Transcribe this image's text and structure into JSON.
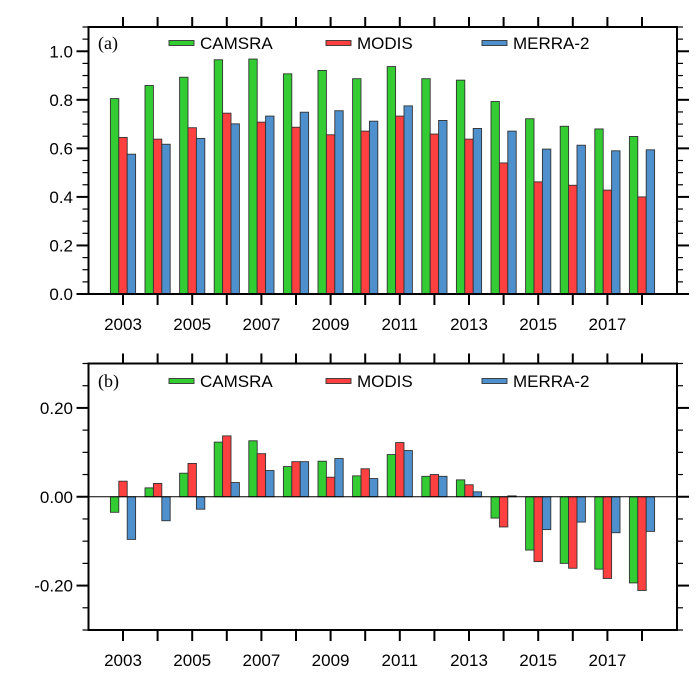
{
  "chart_data": [
    {
      "type": "bar",
      "panel_label": "(a)",
      "title": "",
      "xlabel": "",
      "ylabel": "",
      "x": [
        2003,
        2004,
        2005,
        2006,
        2007,
        2008,
        2009,
        2010,
        2011,
        2012,
        2013,
        2014,
        2015,
        2016,
        2017,
        2018
      ],
      "xticklabels": [
        "2003",
        "2005",
        "2007",
        "2009",
        "2011",
        "2013",
        "2015",
        "2017"
      ],
      "xticklabel_years": [
        2003,
        2005,
        2007,
        2009,
        2011,
        2013,
        2015,
        2017
      ],
      "xlim": [
        2001.9,
        2019.5
      ],
      "ylim": [
        0.0,
        1.1
      ],
      "yticks": [
        0.0,
        0.2,
        0.4,
        0.6,
        0.8,
        1.0
      ],
      "yticklabels": [
        "0.0",
        "0.2",
        "0.4",
        "0.6",
        "0.8",
        "1.0"
      ],
      "yminor_step": 0.05,
      "grid": false,
      "legend": {
        "placement": "top",
        "entries": [
          "CAMSRA",
          "MODIS",
          "MERRA-2"
        ]
      },
      "series": [
        {
          "name": "CAMSRA",
          "color": "#33cc33",
          "values": [
            0.805,
            0.859,
            0.893,
            0.965,
            0.968,
            0.907,
            0.921,
            0.887,
            0.937,
            0.887,
            0.881,
            0.793,
            0.722,
            0.691,
            0.68,
            0.649
          ]
        },
        {
          "name": "MODIS",
          "color": "#ff4040",
          "values": [
            0.645,
            0.638,
            0.685,
            0.745,
            0.708,
            0.687,
            0.656,
            0.671,
            0.733,
            0.659,
            0.638,
            0.54,
            0.462,
            0.448,
            0.428,
            0.4
          ]
        },
        {
          "name": "MERRA-2",
          "color": "#4d90cd",
          "values": [
            0.576,
            0.617,
            0.641,
            0.701,
            0.733,
            0.749,
            0.755,
            0.712,
            0.775,
            0.715,
            0.682,
            0.671,
            0.597,
            0.613,
            0.59,
            0.594
          ]
        }
      ]
    },
    {
      "type": "bar",
      "panel_label": "(b)",
      "title": "",
      "xlabel": "",
      "ylabel": "",
      "x": [
        2003,
        2004,
        2005,
        2006,
        2007,
        2008,
        2009,
        2010,
        2011,
        2012,
        2013,
        2014,
        2015,
        2016,
        2017,
        2018
      ],
      "xticklabels": [
        "2003",
        "2005",
        "2007",
        "2009",
        "2011",
        "2013",
        "2015",
        "2017"
      ],
      "xticklabel_years": [
        2003,
        2005,
        2007,
        2009,
        2011,
        2013,
        2015,
        2017
      ],
      "xlim": [
        2001.9,
        2019.5
      ],
      "ylim": [
        -0.3,
        0.3
      ],
      "yticks": [
        -0.2,
        0.0,
        0.2
      ],
      "yticklabels": [
        "-0.20",
        "0.00",
        "0.20"
      ],
      "yminor_step": 0.05,
      "grid": false,
      "reference_line": 0.0,
      "legend": {
        "placement": "top",
        "entries": [
          "CAMSRA",
          "MODIS",
          "MERRA-2"
        ]
      },
      "series": [
        {
          "name": "CAMSRA",
          "color": "#33cc33",
          "values": [
            -0.035,
            0.02,
            0.053,
            0.123,
            0.126,
            0.068,
            0.08,
            0.047,
            0.095,
            0.046,
            0.038,
            -0.048,
            -0.12,
            -0.15,
            -0.163,
            -0.194
          ]
        },
        {
          "name": "MODIS",
          "color": "#ff4040",
          "values": [
            0.035,
            0.03,
            0.075,
            0.137,
            0.097,
            0.079,
            0.044,
            0.063,
            0.122,
            0.05,
            0.027,
            -0.068,
            -0.146,
            -0.161,
            -0.184,
            -0.211
          ]
        },
        {
          "name": "MERRA-2",
          "color": "#4d90cd",
          "values": [
            -0.096,
            -0.054,
            -0.028,
            0.032,
            0.059,
            0.079,
            0.086,
            0.041,
            0.104,
            0.046,
            0.011,
            0.002,
            -0.074,
            -0.057,
            -0.081,
            -0.078
          ]
        }
      ]
    }
  ]
}
